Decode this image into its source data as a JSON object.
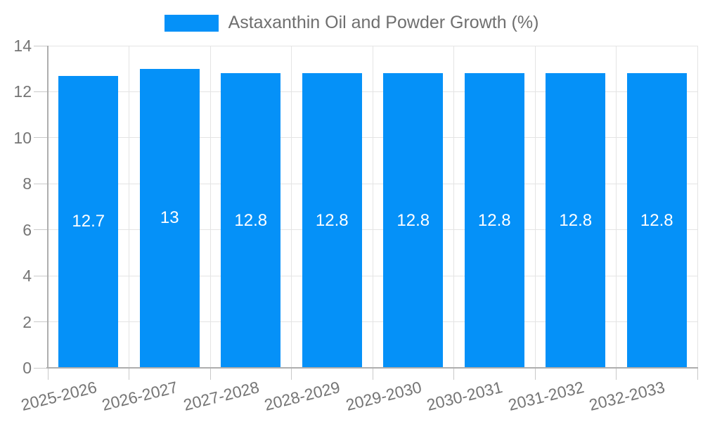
{
  "legend": {
    "label": "Astaxanthin Oil and Powder Growth (%)"
  },
  "chart_data": {
    "type": "bar",
    "title": "Astaxanthin Oil and Powder Growth (%)",
    "categories": [
      "2025-2026",
      "2026-2027",
      "2027-2028",
      "2028-2029",
      "2029-2030",
      "2030-2031",
      "2031-2032",
      "2032-2033"
    ],
    "values": [
      12.7,
      13,
      12.8,
      12.8,
      12.8,
      12.8,
      12.8,
      12.8
    ],
    "value_labels": [
      "12.7",
      "13",
      "12.8",
      "12.8",
      "12.8",
      "12.8",
      "12.8",
      "12.8"
    ],
    "xlabel": "",
    "ylabel": "",
    "ylim": [
      0,
      14
    ],
    "yticks": [
      0,
      2,
      4,
      6,
      8,
      10,
      12,
      14
    ],
    "grid": true,
    "legend_position": "top",
    "series_name": "Astaxanthin Oil and Powder Growth (%)"
  },
  "colors": {
    "bar": "#0591f8",
    "grid": "#e4e4e4",
    "tick": "#c9c9c9",
    "axis": "#aeaeae",
    "text": "#757575",
    "legend_text": "#6f6f6f",
    "value_text": "#ffffff",
    "background": "#ffffff"
  }
}
